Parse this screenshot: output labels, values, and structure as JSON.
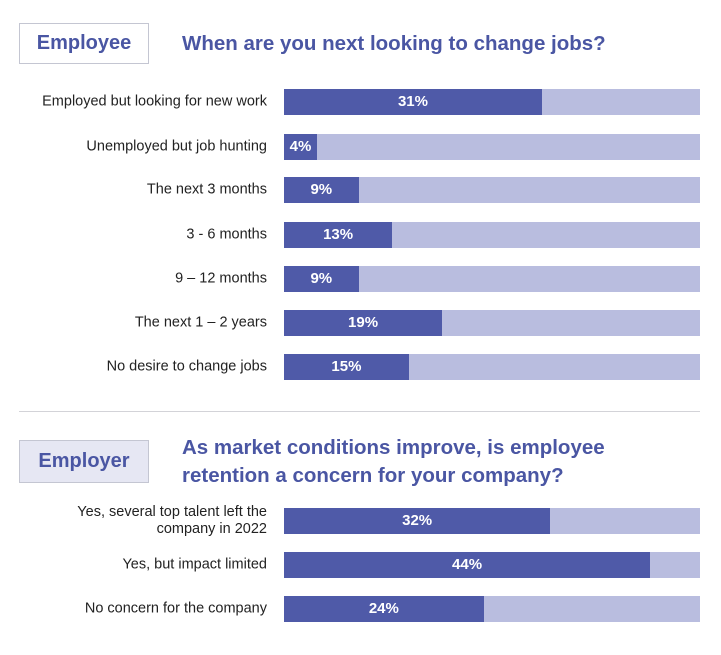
{
  "colors": {
    "bar": "#4f5aa8",
    "track": "#b9bddf",
    "accent": "#4a56a3"
  },
  "chart_data": [
    {
      "type": "bar",
      "orientation": "horizontal",
      "tag": "Employee",
      "title": "When are you next looking to change jobs?",
      "xlim": [
        0,
        50
      ],
      "unit": "%",
      "categories": [
        "Employed but looking for new work",
        "Unemployed but job hunting",
        "The next 3 months",
        "3 - 6 months",
        "9 – 12 months",
        "The next 1 – 2 years",
        "No desire to change jobs"
      ],
      "values": [
        31,
        4,
        9,
        13,
        9,
        19,
        15
      ],
      "labels": [
        "31%",
        "4%",
        "9%",
        "13%",
        "9%",
        "19%",
        "15%"
      ]
    },
    {
      "type": "bar",
      "orientation": "horizontal",
      "tag": "Employer",
      "title_lines": [
        "As market conditions improve, is employee",
        "retention a concern for your company?"
      ],
      "xlim": [
        0,
        50
      ],
      "unit": "%",
      "categories": [
        [
          "Yes, several top talent left the",
          "company in 2022"
        ],
        [
          "Yes, but impact limited"
        ],
        [
          "No concern for the company"
        ]
      ],
      "values": [
        32,
        44,
        24
      ],
      "labels": [
        "32%",
        "44%",
        "24%"
      ]
    }
  ]
}
